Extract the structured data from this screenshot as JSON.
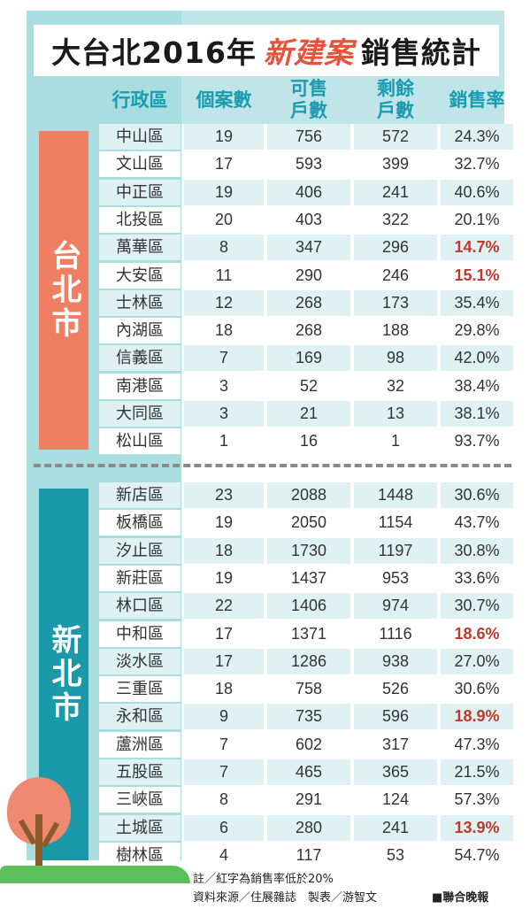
{
  "title": {
    "before": "大台北2016年",
    "highlight": "新建案",
    "after": "銷售統計"
  },
  "headers": {
    "district": "行政區",
    "count": "個案數",
    "units_line1": "可售",
    "units_line2": "戶數",
    "left_line1": "剩餘",
    "left_line2": "戶數",
    "rate": "銷售率"
  },
  "cities": {
    "taipei": "台北市",
    "new_taipei": "新北市"
  },
  "colors": {
    "taipei": "#ef7f63",
    "new_taipei": "#1a9aa9",
    "header": "#1a9bb0",
    "low_rate": "#c0392b",
    "title_highlight": "#e8523a"
  },
  "chart_data": {
    "type": "table",
    "title": "大台北2016年新建案銷售統計",
    "columns": [
      "行政區",
      "個案數",
      "可售戶數",
      "剩餘戶數",
      "銷售率"
    ],
    "groups": [
      {
        "name": "台北市",
        "rows": [
          [
            "中山區",
            "19",
            "756",
            "572",
            "24.3%"
          ],
          [
            "文山區",
            "17",
            "593",
            "399",
            "32.7%"
          ],
          [
            "中正區",
            "19",
            "406",
            "241",
            "40.6%"
          ],
          [
            "北投區",
            "20",
            "403",
            "322",
            "20.1%"
          ],
          [
            "萬華區",
            "8",
            "347",
            "296",
            "14.7%"
          ],
          [
            "大安區",
            "11",
            "290",
            "246",
            "15.1%"
          ],
          [
            "士林區",
            "12",
            "268",
            "173",
            "35.4%"
          ],
          [
            "內湖區",
            "18",
            "268",
            "188",
            "29.8%"
          ],
          [
            "信義區",
            "7",
            "169",
            "98",
            "42.0%"
          ],
          [
            "南港區",
            "3",
            "52",
            "32",
            "38.4%"
          ],
          [
            "大同區",
            "3",
            "21",
            "13",
            "38.1%"
          ],
          [
            "松山區",
            "1",
            "16",
            "1",
            "93.7%"
          ]
        ]
      },
      {
        "name": "新北市",
        "rows": [
          [
            "新店區",
            "23",
            "2088",
            "1448",
            "30.6%"
          ],
          [
            "板橋區",
            "19",
            "2050",
            "1154",
            "43.7%"
          ],
          [
            "汐止區",
            "18",
            "1730",
            "1197",
            "30.8%"
          ],
          [
            "新莊區",
            "19",
            "1437",
            "953",
            "33.6%"
          ],
          [
            "林口區",
            "22",
            "1406",
            "974",
            "30.7%"
          ],
          [
            "中和區",
            "17",
            "1371",
            "1116",
            "18.6%"
          ],
          [
            "淡水區",
            "17",
            "1286",
            "938",
            "27.0%"
          ],
          [
            "三重區",
            "18",
            "758",
            "526",
            "30.6%"
          ],
          [
            "永和區",
            "9",
            "735",
            "596",
            "18.9%"
          ],
          [
            "蘆洲區",
            "7",
            "602",
            "317",
            "47.3%"
          ],
          [
            "五股區",
            "7",
            "465",
            "365",
            "21.5%"
          ],
          [
            "三峽區",
            "8",
            "291",
            "124",
            "57.3%"
          ],
          [
            "土城區",
            "6",
            "280",
            "241",
            "13.9%"
          ],
          [
            "樹林區",
            "4",
            "117",
            "53",
            "54.7%"
          ]
        ]
      }
    ]
  },
  "notes": {
    "note": "註／紅字為銷售率低於20%",
    "source": "資料來源／住展雜誌　製表／游智文",
    "publisher": "■聯合晚報"
  }
}
